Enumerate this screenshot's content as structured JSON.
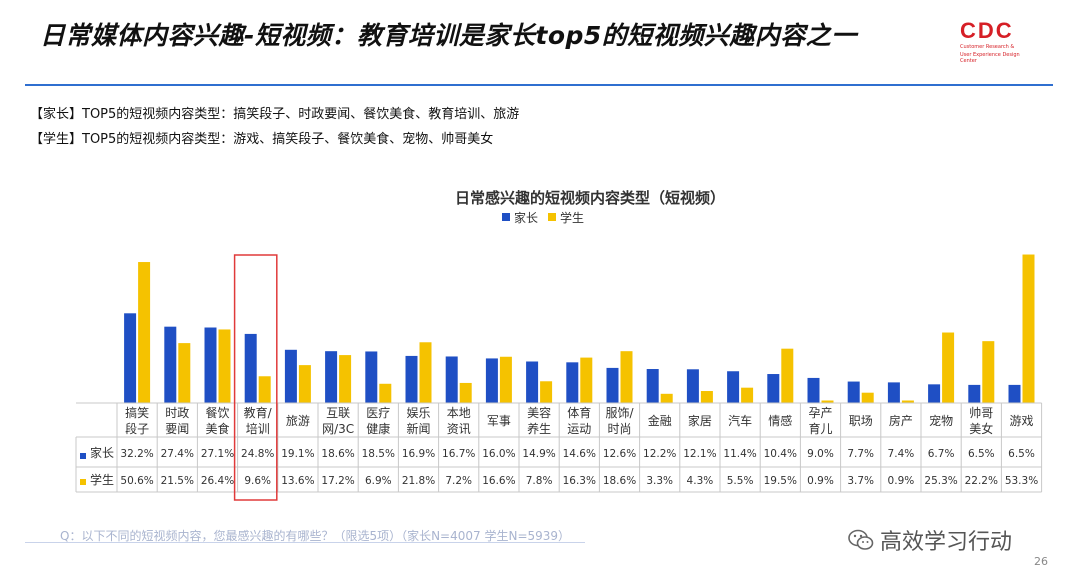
{
  "header": {
    "title": "日常媒体内容兴趣-短视频：教育培训是家长top5的短视频兴趣内容之一",
    "logo_text": "CDC",
    "logo_sub1": "Customer Research &",
    "logo_sub2": "User Experience Design Center"
  },
  "summary": {
    "parent_line": "【家长】TOP5的短视频内容类型：搞笑段子、时政要闻、餐饮美食、教育培训、旅游",
    "student_line": "【学生】TOP5的短视频内容类型：游戏、搞笑段子、餐饮美食、宠物、帅哥美女"
  },
  "colors": {
    "parent": "#1f4fc4",
    "student": "#f5c200",
    "highlight": "#e03a3a"
  },
  "chart_data": {
    "type": "bar",
    "title": "日常感兴趣的短视频内容类型（短视频）",
    "legend_placement": "top",
    "categories": [
      [
        "搞笑",
        "段子"
      ],
      [
        "时政",
        "要闻"
      ],
      [
        "餐饮",
        "美食"
      ],
      [
        "教育/",
        "培训"
      ],
      [
        "旅游"
      ],
      [
        "互联",
        "网/3C"
      ],
      [
        "医疗",
        "健康"
      ],
      [
        "娱乐",
        "新闻"
      ],
      [
        "本地",
        "资讯"
      ],
      [
        "军事"
      ],
      [
        "美容",
        "养生"
      ],
      [
        "体育",
        "运动"
      ],
      [
        "服饰/",
        "时尚"
      ],
      [
        "金融"
      ],
      [
        "家居"
      ],
      [
        "汽车"
      ],
      [
        "情感"
      ],
      [
        "孕产",
        "育儿"
      ],
      [
        "职场"
      ],
      [
        "房产"
      ],
      [
        "宠物"
      ],
      [
        "帅哥",
        "美女"
      ],
      [
        "游戏"
      ]
    ],
    "highlight_index": 3,
    "series": [
      {
        "name": "家长",
        "values": [
          32.2,
          27.4,
          27.1,
          24.8,
          19.1,
          18.6,
          18.5,
          16.9,
          16.7,
          16.0,
          14.9,
          14.6,
          12.6,
          12.2,
          12.1,
          11.4,
          10.4,
          9.0,
          7.7,
          7.4,
          6.7,
          6.5,
          6.5
        ],
        "labels": [
          "32.2%",
          "27.4%",
          "27.1%",
          "24.8%",
          "19.1%",
          "18.6%",
          "18.5%",
          "16.9%",
          "16.7%",
          "16.0%",
          "14.9%",
          "14.6%",
          "12.6%",
          "12.2%",
          "12.1%",
          "11.4%",
          "10.4%",
          "9.0%",
          "7.7%",
          "7.4%",
          "6.7%",
          "6.5%",
          "6.5%"
        ]
      },
      {
        "name": "学生",
        "values": [
          50.6,
          21.5,
          26.4,
          9.6,
          13.6,
          17.2,
          6.9,
          21.8,
          7.2,
          16.6,
          7.8,
          16.3,
          18.6,
          3.3,
          4.3,
          5.5,
          19.5,
          0.9,
          3.7,
          0.9,
          25.3,
          22.2,
          53.3
        ],
        "labels": [
          "50.6%",
          "21.5%",
          "26.4%",
          "9.6%",
          "13.6%",
          "17.2%",
          "6.9%",
          "21.8%",
          "7.2%",
          "16.6%",
          "7.8%",
          "16.3%",
          "18.6%",
          "3.3%",
          "4.3%",
          "5.5%",
          "19.5%",
          "0.9%",
          "3.7%",
          "0.9%",
          "25.3%",
          "22.2%",
          "53.3%"
        ]
      }
    ],
    "ylim": [
      0,
      56
    ]
  },
  "footer": {
    "note": "Q：以下不同的短视频内容，您最感兴趣的有哪些？（限选5项）（家长N=4007    学生N=5939）",
    "watermark": "高效学习行动",
    "page": "26"
  }
}
